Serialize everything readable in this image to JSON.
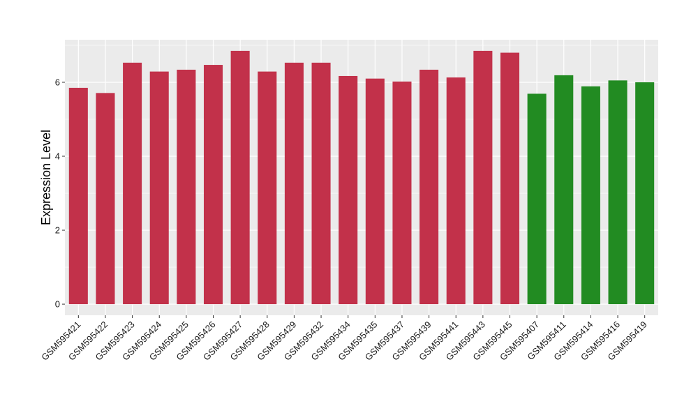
{
  "chart_data": {
    "type": "bar",
    "title": "",
    "xlabel": "",
    "ylabel": "Expression Level",
    "ylim": [
      -0.3,
      7.15
    ],
    "yticks": [
      0,
      2,
      4,
      6
    ],
    "grid": true,
    "panel_background": "#ebebeb",
    "gridline_color": "#ffffff",
    "categories": [
      "GSM595421",
      "GSM595422",
      "GSM595423",
      "GSM595424",
      "GSM595425",
      "GSM595426",
      "GSM595427",
      "GSM595428",
      "GSM595429",
      "GSM595432",
      "GSM595434",
      "GSM595435",
      "GSM595437",
      "GSM595439",
      "GSM595441",
      "GSM595443",
      "GSM595445",
      "GSM595407",
      "GSM595411",
      "GSM595414",
      "GSM595416",
      "GSM595419"
    ],
    "values": [
      5.85,
      5.71,
      6.53,
      6.29,
      6.34,
      6.47,
      6.85,
      6.29,
      6.53,
      6.53,
      6.17,
      6.1,
      6.02,
      6.34,
      6.13,
      6.85,
      6.8,
      5.69,
      6.19,
      5.89,
      6.05,
      6.0
    ],
    "colors": [
      "#c2314a",
      "#c2314a",
      "#c2314a",
      "#c2314a",
      "#c2314a",
      "#c2314a",
      "#c2314a",
      "#c2314a",
      "#c2314a",
      "#c2314a",
      "#c2314a",
      "#c2314a",
      "#c2314a",
      "#c2314a",
      "#c2314a",
      "#c2314a",
      "#c2314a",
      "#228b22",
      "#228b22",
      "#228b22",
      "#228b22",
      "#228b22"
    ]
  }
}
